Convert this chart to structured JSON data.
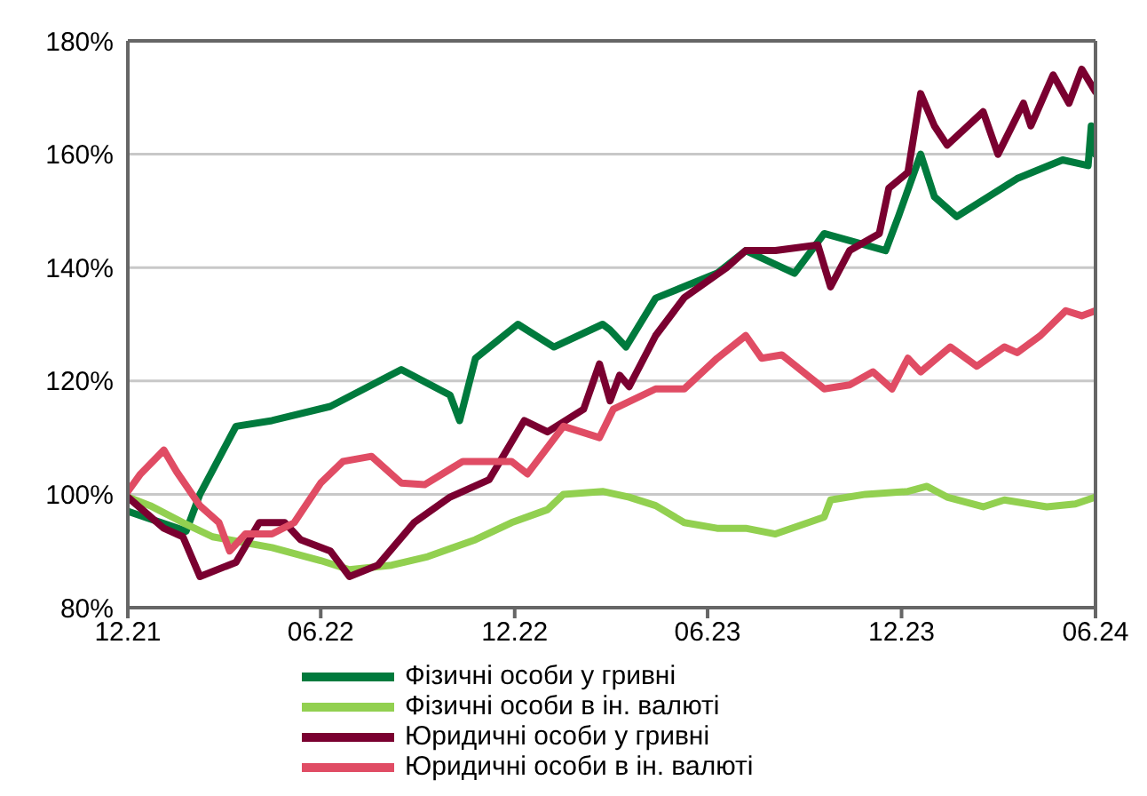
{
  "chart_data": {
    "type": "line",
    "xlim": [
      "2021-12",
      "2024-06"
    ],
    "xticks": [
      {
        "value": "2021-12",
        "label": "12.21"
      },
      {
        "value": "2022-06",
        "label": "06.22"
      },
      {
        "value": "2022-12",
        "label": "12.22"
      },
      {
        "value": "2023-06",
        "label": "06.23"
      },
      {
        "value": "2023-12",
        "label": "12.23"
      },
      {
        "value": "2024-06",
        "label": "06.24"
      }
    ],
    "ylim": [
      80,
      180
    ],
    "yticks": [
      {
        "value": 80,
        "label": "80%"
      },
      {
        "value": 100,
        "label": "100%"
      },
      {
        "value": 120,
        "label": "120%"
      },
      {
        "value": 140,
        "label": "140%"
      },
      {
        "value": 160,
        "label": "160%"
      },
      {
        "value": 180,
        "label": "180%"
      }
    ],
    "grid": "y",
    "legend": "bottom",
    "marker": "none",
    "line_style": "solid",
    "series": [
      {
        "name": "Фізичні особи у гривні",
        "color": "#007a3d",
        "x": [
          "2021-12-01",
          "2022-01-25",
          "2022-02-07",
          "2022-03-13",
          "2022-04-16",
          "2022-06-10",
          "2022-08-16",
          "2022-10-01",
          "2022-10-10",
          "2022-10-25",
          "2022-12-04",
          "2023-01-07",
          "2023-02-22",
          "2023-03-01",
          "2023-03-16",
          "2023-04-13",
          "2023-06-10",
          "2023-07-07",
          "2023-08-22",
          "2023-09-19",
          "2023-11-16",
          "2023-11-28",
          "2023-12-19",
          "2024-01-01",
          "2024-01-22",
          "2024-03-19",
          "2024-05-01",
          "2024-05-25",
          "2024-05-28",
          "2024-06-01"
        ],
        "values": [
          97,
          93.5,
          100,
          112,
          113,
          115.5,
          122,
          117.5,
          113,
          124,
          130,
          126,
          130,
          129,
          126,
          134.6,
          139,
          143,
          139,
          146,
          143,
          149,
          160,
          152.5,
          149,
          155.7,
          159,
          158,
          165,
          160
        ]
      },
      {
        "name": "Фізичні особи в ін. валюті",
        "color": "#92d050",
        "x": [
          "2021-12-01",
          "2021-12-22",
          "2022-01-22",
          "2022-02-19",
          "2022-04-16",
          "2022-06-01",
          "2022-06-28",
          "2022-08-07",
          "2022-09-10",
          "2022-10-25",
          "2022-11-28",
          "2023-01-01",
          "2023-01-16",
          "2023-02-22",
          "2023-03-19",
          "2023-04-13",
          "2023-05-10",
          "2023-06-10",
          "2023-07-07",
          "2023-08-04",
          "2023-09-04",
          "2023-09-19",
          "2023-09-25",
          "2023-10-28",
          "2023-12-07",
          "2023-12-25",
          "2024-01-13",
          "2024-02-16",
          "2024-03-07",
          "2024-04-16",
          "2024-05-13",
          "2024-06-01"
        ],
        "values": [
          99.5,
          98,
          95,
          92.5,
          90.6,
          88.3,
          86.7,
          87.5,
          89,
          92,
          95,
          97.3,
          100,
          100.5,
          99.5,
          98,
          95,
          94,
          94,
          93,
          95,
          96,
          99,
          100,
          100.5,
          101.4,
          99.5,
          97.8,
          99,
          97.8,
          98.3,
          99.5
        ]
      },
      {
        "name": "Юридичні особи у гривні",
        "color": "#7a0030",
        "x": [
          "2021-12-01",
          "2022-01-04",
          "2022-01-22",
          "2022-02-07",
          "2022-03-13",
          "2022-04-04",
          "2022-04-28",
          "2022-05-13",
          "2022-06-10",
          "2022-06-28",
          "2022-07-25",
          "2022-08-28",
          "2022-10-01",
          "2022-11-07",
          "2022-12-10",
          "2023-01-01",
          "2023-02-04",
          "2023-02-19",
          "2023-03-01",
          "2023-03-10",
          "2023-03-19",
          "2023-04-13",
          "2023-05-10",
          "2023-06-19",
          "2023-07-07",
          "2023-08-04",
          "2023-09-13",
          "2023-09-25",
          "2023-10-13",
          "2023-11-10",
          "2023-11-19",
          "2023-12-07",
          "2023-12-19",
          "2024-01-01",
          "2024-01-13",
          "2024-02-16",
          "2024-03-01",
          "2024-03-25",
          "2024-04-01",
          "2024-04-22",
          "2024-05-07",
          "2024-05-19",
          "2024-06-01"
        ],
        "values": [
          99.5,
          94,
          92.5,
          85.5,
          88,
          95,
          95,
          92,
          90,
          85.5,
          87.5,
          95,
          99.5,
          102.6,
          113,
          111,
          115,
          123,
          116.5,
          121,
          119,
          128,
          134.7,
          140,
          143,
          143,
          144,
          136.6,
          143,
          146,
          154,
          156.8,
          170.7,
          165,
          161.6,
          167.5,
          160,
          169,
          165,
          174,
          169,
          175,
          171
        ]
      },
      {
        "name": "Юридичні особи в ін. валюті",
        "color": "#e04c64",
        "x": [
          "2021-12-01",
          "2021-12-13",
          "2022-01-04",
          "2022-01-16",
          "2022-02-07",
          "2022-02-25",
          "2022-03-07",
          "2022-03-22",
          "2022-04-16",
          "2022-05-07",
          "2022-06-01",
          "2022-06-22",
          "2022-07-19",
          "2022-08-16",
          "2022-09-07",
          "2022-10-13",
          "2022-11-28",
          "2022-12-13",
          "2023-01-16",
          "2023-02-19",
          "2023-03-04",
          "2023-04-13",
          "2023-05-10",
          "2023-06-10",
          "2023-07-07",
          "2023-07-22",
          "2023-08-10",
          "2023-09-19",
          "2023-10-13",
          "2023-11-04",
          "2023-11-22",
          "2023-12-07",
          "2023-12-19",
          "2024-01-16",
          "2024-02-10",
          "2024-03-07",
          "2024-03-19",
          "2024-04-10",
          "2024-05-04",
          "2024-05-19",
          "2024-06-01"
        ],
        "values": [
          100.5,
          103.6,
          107.8,
          104,
          98,
          95,
          90,
          93,
          93,
          95,
          102,
          105.8,
          106.7,
          102,
          101.7,
          105.8,
          105.8,
          103.6,
          112,
          110,
          115,
          118.6,
          118.6,
          124,
          128,
          124,
          124.6,
          118.6,
          119.3,
          121.6,
          118.6,
          124,
          121.6,
          126,
          122.6,
          126,
          125,
          128,
          132.4,
          131.5,
          132.4
        ]
      }
    ]
  }
}
